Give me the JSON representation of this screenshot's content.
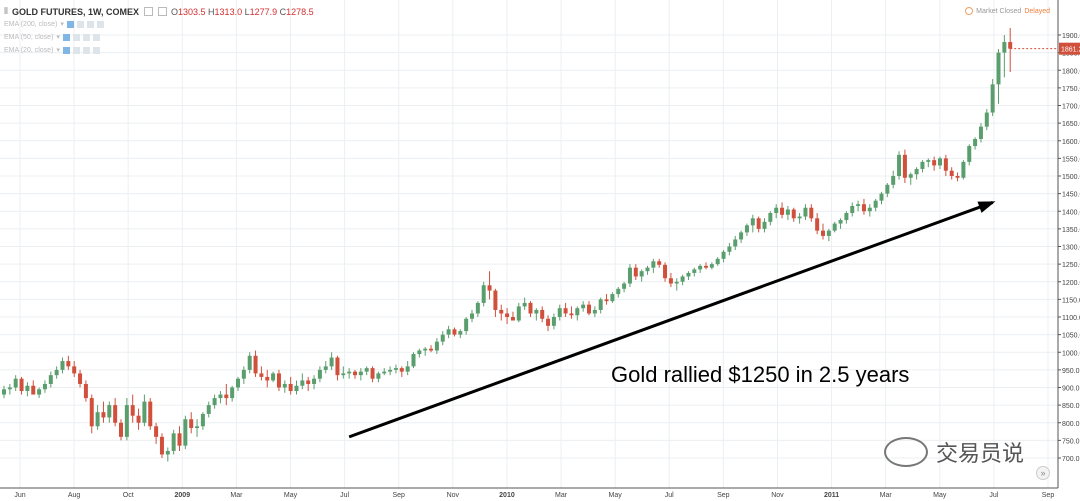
{
  "header": {
    "symbol": "GOLD FUTURES, 1W, COMEX",
    "ohlc": [
      {
        "label": "O",
        "value": "1303.5"
      },
      {
        "label": "H",
        "value": "1313.0"
      },
      {
        "label": "L",
        "value": "1277.9"
      },
      {
        "label": "C",
        "value": "1278.5"
      }
    ],
    "indicators": [
      "EMA (200, close)",
      "EMA (50, close)",
      "EMA (20, close)"
    ],
    "status": "Market Closed",
    "delayed": "Delayed"
  },
  "annotation": "Gold rallied $1250 in 2.5 years",
  "watermark": "交易员说",
  "colors": {
    "up": "#5b9e6e",
    "down": "#d0503c",
    "arrow": "#000000",
    "price_tag": "#d0503c"
  },
  "chart_data": {
    "type": "candlestick",
    "ylim": [
      675,
      1950
    ],
    "y_ticks": [
      "700.0",
      "750.0",
      "800.0",
      "850.0",
      "900.0",
      "950.0",
      "1000.0",
      "1050.0",
      "1100.0",
      "1150.0",
      "1200.0",
      "1250.0",
      "1300.0",
      "1350.0",
      "1400.0",
      "1450.0",
      "1500.0",
      "1550.0",
      "1600.0",
      "1650.0",
      "1700.0",
      "1750.0",
      "1800.0",
      "1850.0",
      "1900.0"
    ],
    "x_ticks": [
      "Jun",
      "Aug",
      "Oct",
      "2009",
      "Mar",
      "May",
      "Jul",
      "Sep",
      "Nov",
      "2010",
      "Mar",
      "May",
      "Jul",
      "Sep",
      "Nov",
      "2011",
      "Mar",
      "May",
      "Jul",
      "Sep"
    ],
    "bold_x_ticks": [
      "2009",
      "2010",
      "2011"
    ],
    "last_price": "1861.2",
    "arrow": {
      "from": {
        "week": 59,
        "price": 760
      },
      "to": {
        "week": 169,
        "price": 1425
      }
    },
    "candles": [
      [
        880,
        905,
        870,
        895
      ],
      [
        895,
        910,
        880,
        900
      ],
      [
        900,
        935,
        890,
        925
      ],
      [
        925,
        930,
        880,
        890
      ],
      [
        890,
        915,
        875,
        905
      ],
      [
        905,
        920,
        890,
        880
      ],
      [
        880,
        900,
        870,
        895
      ],
      [
        895,
        920,
        885,
        910
      ],
      [
        910,
        945,
        900,
        935
      ],
      [
        935,
        960,
        925,
        950
      ],
      [
        950,
        985,
        940,
        975
      ],
      [
        975,
        990,
        950,
        960
      ],
      [
        960,
        975,
        930,
        940
      ],
      [
        940,
        950,
        900,
        910
      ],
      [
        910,
        920,
        860,
        870
      ],
      [
        870,
        880,
        770,
        790
      ],
      [
        790,
        850,
        780,
        830
      ],
      [
        830,
        860,
        800,
        815
      ],
      [
        815,
        860,
        800,
        850
      ],
      [
        850,
        870,
        790,
        800
      ],
      [
        800,
        810,
        750,
        760
      ],
      [
        760,
        870,
        750,
        850
      ],
      [
        850,
        880,
        800,
        820
      ],
      [
        820,
        840,
        780,
        800
      ],
      [
        800,
        880,
        790,
        860
      ],
      [
        860,
        870,
        780,
        790
      ],
      [
        790,
        800,
        740,
        760
      ],
      [
        760,
        770,
        700,
        710
      ],
      [
        710,
        730,
        690,
        720
      ],
      [
        720,
        780,
        710,
        770
      ],
      [
        770,
        790,
        720,
        735
      ],
      [
        735,
        820,
        725,
        810
      ],
      [
        810,
        830,
        770,
        785
      ],
      [
        785,
        810,
        760,
        790
      ],
      [
        790,
        830,
        780,
        825
      ],
      [
        825,
        860,
        815,
        850
      ],
      [
        850,
        880,
        840,
        870
      ],
      [
        870,
        890,
        855,
        880
      ],
      [
        880,
        910,
        850,
        870
      ],
      [
        870,
        905,
        860,
        900
      ],
      [
        900,
        930,
        890,
        925
      ],
      [
        925,
        960,
        910,
        950
      ],
      [
        950,
        1000,
        940,
        990
      ],
      [
        990,
        1005,
        930,
        940
      ],
      [
        940,
        960,
        920,
        930
      ],
      [
        930,
        950,
        900,
        920
      ],
      [
        920,
        945,
        915,
        940
      ],
      [
        940,
        950,
        890,
        900
      ],
      [
        900,
        920,
        885,
        910
      ],
      [
        910,
        930,
        880,
        890
      ],
      [
        890,
        920,
        880,
        905
      ],
      [
        905,
        940,
        895,
        920
      ],
      [
        920,
        930,
        890,
        910
      ],
      [
        910,
        935,
        895,
        925
      ],
      [
        925,
        960,
        915,
        950
      ],
      [
        950,
        975,
        940,
        960
      ],
      [
        960,
        1000,
        950,
        985
      ],
      [
        985,
        990,
        920,
        935
      ],
      [
        935,
        960,
        925,
        940
      ],
      [
        940,
        955,
        925,
        945
      ],
      [
        945,
        950,
        925,
        935
      ],
      [
        935,
        955,
        920,
        945
      ],
      [
        945,
        960,
        935,
        955
      ],
      [
        955,
        960,
        915,
        925
      ],
      [
        925,
        945,
        915,
        940
      ],
      [
        940,
        955,
        935,
        945
      ],
      [
        945,
        960,
        935,
        950
      ],
      [
        950,
        965,
        940,
        955
      ],
      [
        955,
        960,
        930,
        945
      ],
      [
        945,
        975,
        935,
        960
      ],
      [
        960,
        1000,
        955,
        995
      ],
      [
        995,
        1010,
        985,
        1005
      ],
      [
        1005,
        1015,
        990,
        1010
      ],
      [
        1010,
        1020,
        1000,
        1005
      ],
      [
        1005,
        1040,
        995,
        1030
      ],
      [
        1030,
        1060,
        1020,
        1050
      ],
      [
        1050,
        1075,
        1040,
        1065
      ],
      [
        1065,
        1070,
        1045,
        1050
      ],
      [
        1050,
        1065,
        1040,
        1060
      ],
      [
        1060,
        1100,
        1050,
        1095
      ],
      [
        1095,
        1120,
        1085,
        1110
      ],
      [
        1110,
        1145,
        1100,
        1140
      ],
      [
        1140,
        1200,
        1130,
        1190
      ],
      [
        1190,
        1230,
        1150,
        1175
      ],
      [
        1175,
        1180,
        1100,
        1120
      ],
      [
        1120,
        1135,
        1090,
        1110
      ],
      [
        1110,
        1125,
        1080,
        1100
      ],
      [
        1100,
        1115,
        1095,
        1090
      ],
      [
        1090,
        1140,
        1085,
        1130
      ],
      [
        1130,
        1155,
        1120,
        1140
      ],
      [
        1140,
        1145,
        1100,
        1110
      ],
      [
        1110,
        1125,
        1090,
        1120
      ],
      [
        1120,
        1130,
        1085,
        1095
      ],
      [
        1095,
        1105,
        1060,
        1075
      ],
      [
        1075,
        1110,
        1065,
        1100
      ],
      [
        1100,
        1135,
        1090,
        1125
      ],
      [
        1125,
        1140,
        1100,
        1110
      ],
      [
        1110,
        1130,
        1095,
        1105
      ],
      [
        1105,
        1130,
        1090,
        1125
      ],
      [
        1125,
        1145,
        1115,
        1135
      ],
      [
        1135,
        1145,
        1105,
        1110
      ],
      [
        1110,
        1130,
        1100,
        1120
      ],
      [
        1120,
        1155,
        1110,
        1150
      ],
      [
        1150,
        1165,
        1135,
        1145
      ],
      [
        1145,
        1170,
        1140,
        1165
      ],
      [
        1165,
        1185,
        1155,
        1180
      ],
      [
        1180,
        1200,
        1170,
        1195
      ],
      [
        1195,
        1250,
        1185,
        1240
      ],
      [
        1240,
        1250,
        1205,
        1215
      ],
      [
        1215,
        1235,
        1200,
        1230
      ],
      [
        1230,
        1245,
        1220,
        1240
      ],
      [
        1240,
        1265,
        1225,
        1258
      ],
      [
        1258,
        1265,
        1240,
        1248
      ],
      [
        1248,
        1255,
        1200,
        1210
      ],
      [
        1210,
        1225,
        1185,
        1195
      ],
      [
        1195,
        1210,
        1175,
        1200
      ],
      [
        1200,
        1220,
        1190,
        1215
      ],
      [
        1215,
        1230,
        1205,
        1225
      ],
      [
        1225,
        1240,
        1215,
        1235
      ],
      [
        1235,
        1250,
        1225,
        1245
      ],
      [
        1245,
        1255,
        1235,
        1240
      ],
      [
        1240,
        1255,
        1235,
        1250
      ],
      [
        1250,
        1270,
        1245,
        1265
      ],
      [
        1265,
        1290,
        1255,
        1285
      ],
      [
        1285,
        1310,
        1275,
        1300
      ],
      [
        1300,
        1330,
        1290,
        1320
      ],
      [
        1320,
        1345,
        1310,
        1340
      ],
      [
        1340,
        1365,
        1330,
        1360
      ],
      [
        1360,
        1390,
        1340,
        1380
      ],
      [
        1380,
        1385,
        1340,
        1350
      ],
      [
        1350,
        1380,
        1340,
        1370
      ],
      [
        1370,
        1400,
        1360,
        1395
      ],
      [
        1395,
        1420,
        1380,
        1410
      ],
      [
        1410,
        1425,
        1380,
        1390
      ],
      [
        1390,
        1415,
        1375,
        1405
      ],
      [
        1405,
        1410,
        1370,
        1380
      ],
      [
        1380,
        1395,
        1365,
        1385
      ],
      [
        1385,
        1420,
        1375,
        1410
      ],
      [
        1410,
        1420,
        1370,
        1380
      ],
      [
        1380,
        1395,
        1335,
        1345
      ],
      [
        1345,
        1365,
        1320,
        1330
      ],
      [
        1330,
        1350,
        1315,
        1345
      ],
      [
        1345,
        1370,
        1340,
        1365
      ],
      [
        1365,
        1380,
        1350,
        1375
      ],
      [
        1375,
        1400,
        1365,
        1395
      ],
      [
        1395,
        1425,
        1385,
        1415
      ],
      [
        1415,
        1430,
        1400,
        1420
      ],
      [
        1420,
        1435,
        1390,
        1400
      ],
      [
        1400,
        1420,
        1385,
        1410
      ],
      [
        1410,
        1435,
        1400,
        1430
      ],
      [
        1430,
        1455,
        1420,
        1450
      ],
      [
        1450,
        1480,
        1440,
        1475
      ],
      [
        1475,
        1515,
        1465,
        1500
      ],
      [
        1500,
        1570,
        1490,
        1560
      ],
      [
        1560,
        1575,
        1480,
        1495
      ],
      [
        1495,
        1510,
        1475,
        1505
      ],
      [
        1505,
        1525,
        1490,
        1520
      ],
      [
        1520,
        1545,
        1510,
        1540
      ],
      [
        1540,
        1550,
        1525,
        1545
      ],
      [
        1545,
        1555,
        1515,
        1530
      ],
      [
        1530,
        1555,
        1520,
        1550
      ],
      [
        1550,
        1560,
        1500,
        1515
      ],
      [
        1515,
        1525,
        1490,
        1500
      ],
      [
        1500,
        1510,
        1485,
        1495
      ],
      [
        1495,
        1545,
        1490,
        1540
      ],
      [
        1540,
        1590,
        1530,
        1585
      ],
      [
        1585,
        1610,
        1575,
        1605
      ],
      [
        1605,
        1650,
        1595,
        1640
      ],
      [
        1640,
        1690,
        1630,
        1680
      ],
      [
        1680,
        1775,
        1670,
        1760
      ],
      [
        1760,
        1860,
        1705,
        1850
      ],
      [
        1850,
        1900,
        1780,
        1880
      ],
      [
        1880,
        1920,
        1795,
        1861.2
      ]
    ]
  }
}
